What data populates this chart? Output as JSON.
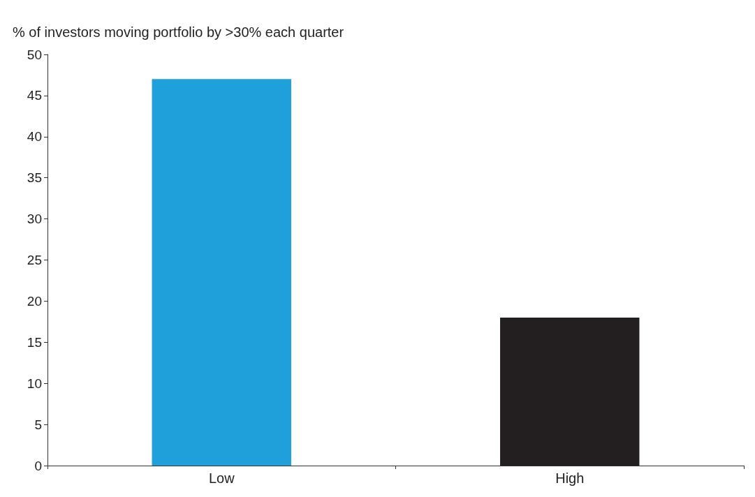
{
  "chart_data": {
    "type": "bar",
    "ylabel": "% of investors moving portfolio by >30% each quarter",
    "categories": [
      "Low",
      "High"
    ],
    "values": [
      47,
      18
    ],
    "colors": [
      "#20a0da",
      "#231f20"
    ],
    "ylim": [
      0,
      50
    ],
    "yticks": [
      0,
      5,
      10,
      15,
      20,
      25,
      30,
      35,
      40,
      45,
      50
    ],
    "grid": false
  }
}
